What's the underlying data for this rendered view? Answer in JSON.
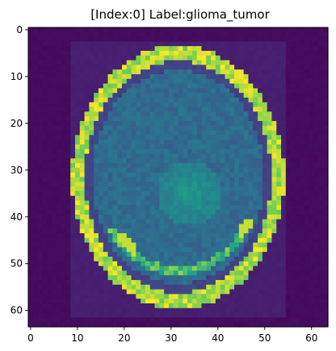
{
  "chart_data": {
    "type": "heatmap",
    "title": "[Index:0] Label:glioma_tumor",
    "xlabel": "",
    "ylabel": "",
    "colormap": "viridis",
    "image_size": [
      64,
      64
    ],
    "xlim": [
      -0.5,
      63.5
    ],
    "ylim": [
      63.5,
      -0.5
    ],
    "x_ticks": [
      0,
      10,
      20,
      30,
      40,
      50,
      60
    ],
    "y_ticks": [
      0,
      10,
      20,
      30,
      40,
      50,
      60
    ],
    "grid": false,
    "legend": "none",
    "content": {
      "background_level": 0.03,
      "scanner_frame_level": 0.1,
      "head_center": [
        31.5,
        31.5
      ],
      "skull_semi_axes": [
        21,
        26
      ],
      "skull_level": 0.85,
      "brain_level": 0.38,
      "tumor_region": {
        "center": [
          34,
          35
        ],
        "level": 0.62
      }
    }
  }
}
